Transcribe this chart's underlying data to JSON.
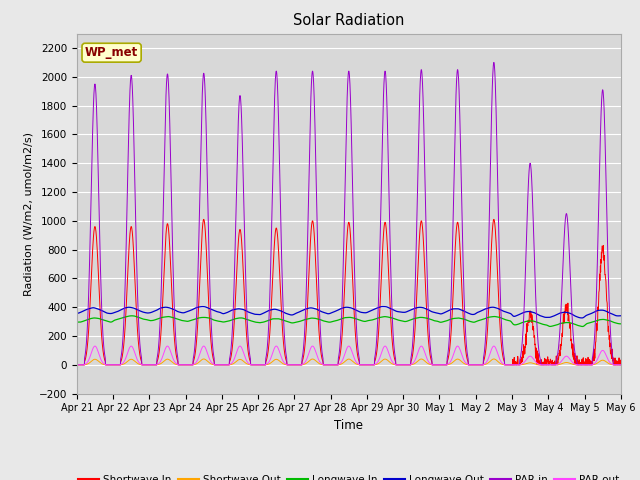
{
  "title": "Solar Radiation",
  "xlabel": "Time",
  "ylabel": "Radiation (W/m2, umol/m2/s)",
  "ylim": [
    -200,
    2300
  ],
  "xlim": [
    0,
    15
  ],
  "x_tick_labels": [
    "Apr 21",
    "Apr 22",
    "Apr 23",
    "Apr 24",
    "Apr 25",
    "Apr 26",
    "Apr 27",
    "Apr 28",
    "Apr 29",
    "Apr 30",
    "May 1",
    "May 2",
    "May 3",
    "May 4",
    "May 5",
    "May 6"
  ],
  "station_label": "WP_met",
  "background_color": "#e8e8e8",
  "plot_bg_color": "#d8d8d8",
  "legend_entries": [
    "Shortwave In",
    "Shortwave Out",
    "Longwave In",
    "Longwave Out",
    "PAR in",
    "PAR out"
  ],
  "legend_colors": [
    "#ff0000",
    "#ffa500",
    "#00bb00",
    "#0000cc",
    "#9900cc",
    "#ff44ff"
  ],
  "par_peaks": [
    1950,
    2010,
    2020,
    2025,
    1870,
    2040,
    2040,
    2040,
    2040,
    2050,
    2050,
    2100,
    1400,
    1050,
    1910
  ],
  "sw_peaks": [
    960,
    960,
    980,
    1010,
    940,
    950,
    1000,
    990,
    990,
    1000,
    990,
    1010,
    350,
    400,
    800
  ],
  "par_out_peaks": [
    130,
    130,
    130,
    130,
    130,
    130,
    130,
    130,
    130,
    130,
    130,
    130,
    60,
    60,
    100
  ],
  "lw_in_vals": [
    310,
    325,
    320,
    315,
    310,
    305,
    310,
    315,
    320,
    315,
    310,
    320,
    290,
    280,
    300
  ],
  "lw_out_vals": [
    375,
    380,
    380,
    385,
    370,
    365,
    375,
    380,
    385,
    380,
    370,
    380,
    350,
    345,
    360
  ]
}
